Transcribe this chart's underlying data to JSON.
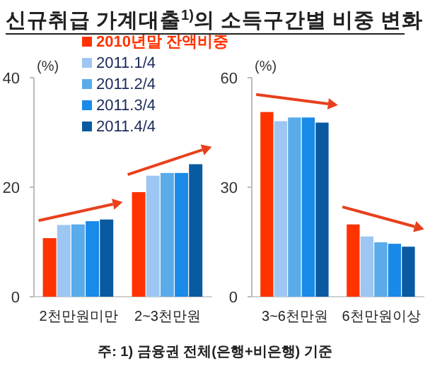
{
  "chart_data": [
    {
      "type": "bar",
      "title": "신규취급 가계대출$^{1)}$의 소득구간별 비중 변화",
      "ylabel": "(%)",
      "categories": [
        "2천만원미만",
        "2~3천만원"
      ],
      "ylim": [
        0,
        40
      ],
      "yticks": [
        0,
        20,
        40
      ],
      "grid": false,
      "legend": "top",
      "series": [
        {
          "name": "2010년말 잔액비중",
          "color": "#ff3300",
          "values": [
            10.7,
            19.1
          ]
        },
        {
          "name": "2011.1/4",
          "color": "#9dc6f2",
          "values": [
            13.1,
            22.1
          ]
        },
        {
          "name": "2011.2/4",
          "color": "#5aabea",
          "values": [
            13.2,
            22.6
          ]
        },
        {
          "name": "2011.3/4",
          "color": "#1a8ae8",
          "values": [
            13.8,
            22.6
          ]
        },
        {
          "name": "2011.4/4",
          "color": "#0a5aa2",
          "values": [
            14.1,
            24.2
          ]
        }
      ],
      "annotations": [
        "주: 1) 금융권 전체(은행+비은행) 기준"
      ]
    },
    {
      "type": "bar",
      "ylabel": "(%)",
      "categories": [
        "3~6천만원",
        "6천만원이상"
      ],
      "ylim": [
        0,
        60
      ],
      "yticks": [
        0,
        30,
        60
      ],
      "grid": false,
      "legend": false,
      "series": [
        {
          "color": "#ff3300",
          "values": [
            50.6,
            19.8
          ]
        },
        {
          "color": "#9dc6f2",
          "values": [
            48.1,
            16.5
          ]
        },
        {
          "color": "#5aabea",
          "values": [
            49.1,
            14.9
          ]
        },
        {
          "color": "#1a8ae8",
          "values": [
            49.1,
            14.5
          ]
        },
        {
          "color": "#0a5aa2",
          "values": [
            47.7,
            13.7
          ]
        }
      ]
    }
  ]
}
